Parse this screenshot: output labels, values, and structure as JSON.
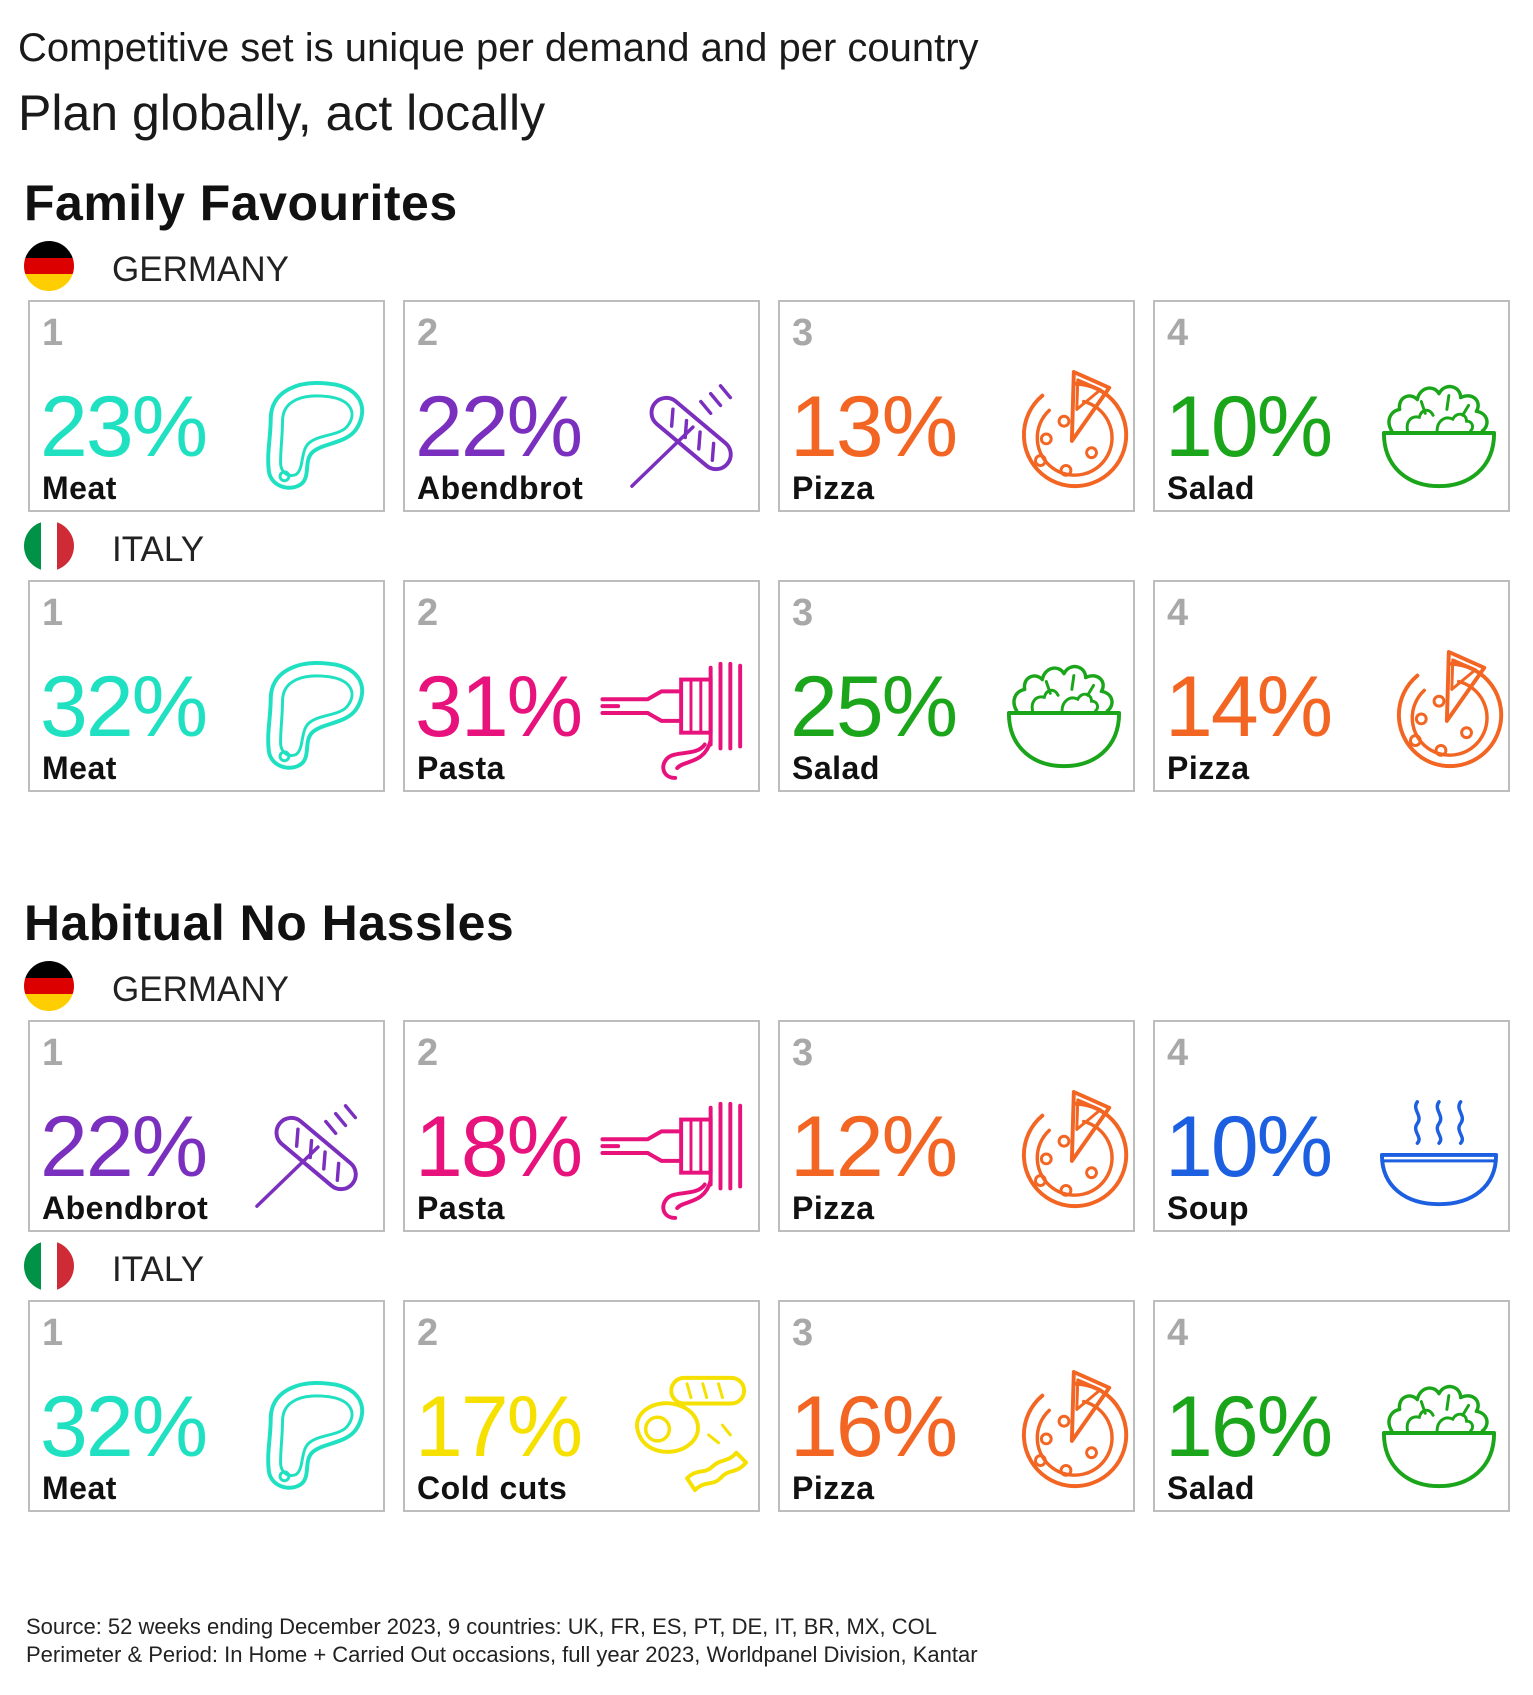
{
  "header": {
    "line1": "Competitive set is unique per demand and per country",
    "line2": "Plan globally, act locally"
  },
  "colors": {
    "Meat": "#1fe0c0",
    "Abendbrot": "#7b2fbe",
    "Pizza": "#f26522",
    "Salad": "#1aa51a",
    "Pasta": "#e8127c",
    "Soup": "#1c5fe0",
    "Cold cuts": "#f6e000"
  },
  "sections": [
    {
      "title": "Family Favourites",
      "countries": [
        {
          "name": "GERMANY",
          "flag": "germany-flag",
          "items": [
            {
              "rank": "1",
              "pct": "23%",
              "label": "Meat",
              "icon": "meat-icon"
            },
            {
              "rank": "2",
              "pct": "22%",
              "label": "Abendbrot",
              "icon": "bread-icon"
            },
            {
              "rank": "3",
              "pct": "13%",
              "label": "Pizza",
              "icon": "pizza-icon"
            },
            {
              "rank": "4",
              "pct": "10%",
              "label": "Salad",
              "icon": "salad-icon"
            }
          ]
        },
        {
          "name": "ITALY",
          "flag": "italy-flag",
          "items": [
            {
              "rank": "1",
              "pct": "32%",
              "label": "Meat",
              "icon": "meat-icon"
            },
            {
              "rank": "2",
              "pct": "31%",
              "label": "Pasta",
              "icon": "pasta-fork-icon"
            },
            {
              "rank": "3",
              "pct": "25%",
              "label": "Salad",
              "icon": "salad-icon"
            },
            {
              "rank": "4",
              "pct": "14%",
              "label": "Pizza",
              "icon": "pizza-icon"
            }
          ]
        }
      ]
    },
    {
      "title": "Habitual No Hassles",
      "countries": [
        {
          "name": "GERMANY",
          "flag": "germany-flag",
          "items": [
            {
              "rank": "1",
              "pct": "22%",
              "label": "Abendbrot",
              "icon": "bread-icon"
            },
            {
              "rank": "2",
              "pct": "18%",
              "label": "Pasta",
              "icon": "pasta-fork-icon"
            },
            {
              "rank": "3",
              "pct": "12%",
              "label": "Pizza",
              "icon": "pizza-icon"
            },
            {
              "rank": "4",
              "pct": "10%",
              "label": "Soup",
              "icon": "soup-icon"
            }
          ]
        },
        {
          "name": "ITALY",
          "flag": "italy-flag",
          "items": [
            {
              "rank": "1",
              "pct": "32%",
              "label": "Meat",
              "icon": "meat-icon"
            },
            {
              "rank": "2",
              "pct": "17%",
              "label": "Cold cuts",
              "icon": "cold-cuts-icon"
            },
            {
              "rank": "3",
              "pct": "16%",
              "label": "Pizza",
              "icon": "pizza-icon"
            },
            {
              "rank": "4",
              "pct": "16%",
              "label": "Salad",
              "icon": "salad-icon"
            }
          ]
        }
      ]
    }
  ],
  "footer": {
    "line1": "Source: 52 weeks ending December 2023, 9 countries: UK, FR, ES, PT, DE, IT, BR, MX, COL",
    "line2": "Perimeter & Period: In Home + Carried Out occasions, full year 2023, Worldpanel Division, Kantar"
  }
}
